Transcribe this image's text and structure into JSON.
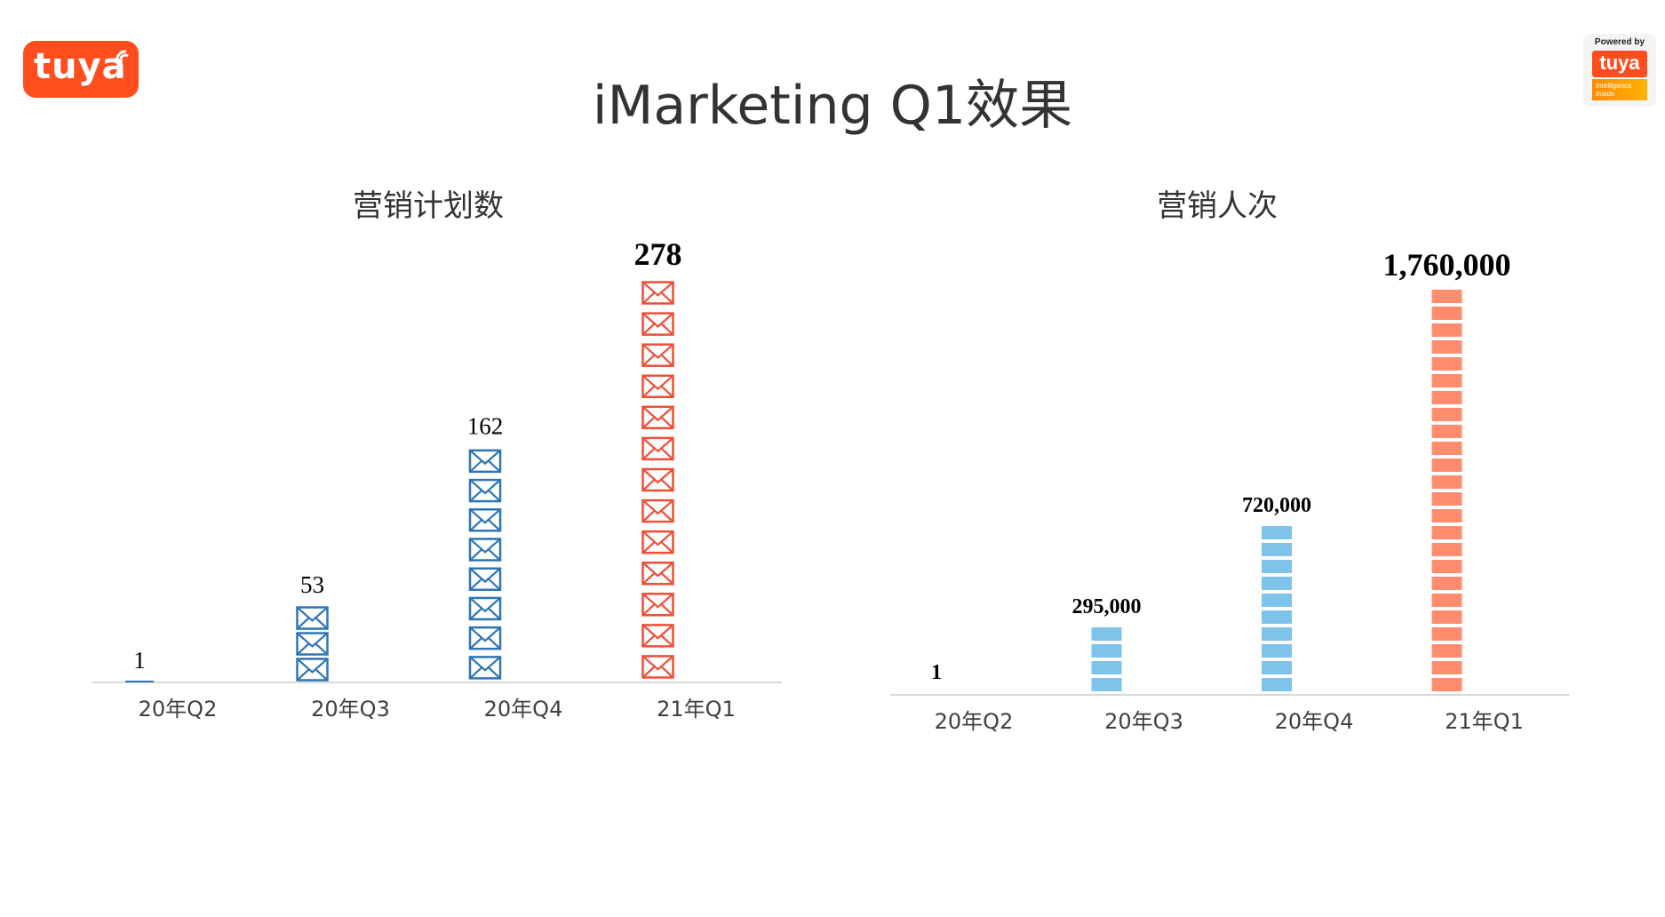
{
  "header": {
    "logo_text": "tuya",
    "title": "iMarketing Q1效果",
    "badge": {
      "powered_by": "Powered by",
      "brand": "tuya",
      "tagline": "Intelligence Inside"
    }
  },
  "colors": {
    "brand": "#ff4d1e",
    "blue_icon": "#2e75b6",
    "red_icon": "#f04e37",
    "light_blue_bar": "#7ec3ea",
    "salmon_bar": "#ff8c6e",
    "highlight_label": "#ff0000"
  },
  "chart_data": [
    {
      "type": "bar",
      "title": "营销计划数",
      "categories": [
        "20年Q2",
        "20年Q3",
        "20年Q4",
        "21年Q1"
      ],
      "values": [
        1,
        53,
        162,
        278
      ],
      "data_labels": [
        "1",
        "53",
        "162",
        "278"
      ],
      "mark_style": "stacked envelope icons",
      "highlight_category": "21年Q1",
      "legend": "none",
      "grid": false
    },
    {
      "type": "bar",
      "title": "营销人次",
      "categories": [
        "20年Q2",
        "20年Q3",
        "20年Q4",
        "21年Q1"
      ],
      "values": [
        1,
        295000,
        720000,
        1760000
      ],
      "data_labels": [
        "1",
        "295,000",
        "720,000",
        "1,760,000"
      ],
      "mark_style": "stacked segments",
      "highlight_category": "21年Q1",
      "legend": "none",
      "grid": false
    }
  ]
}
